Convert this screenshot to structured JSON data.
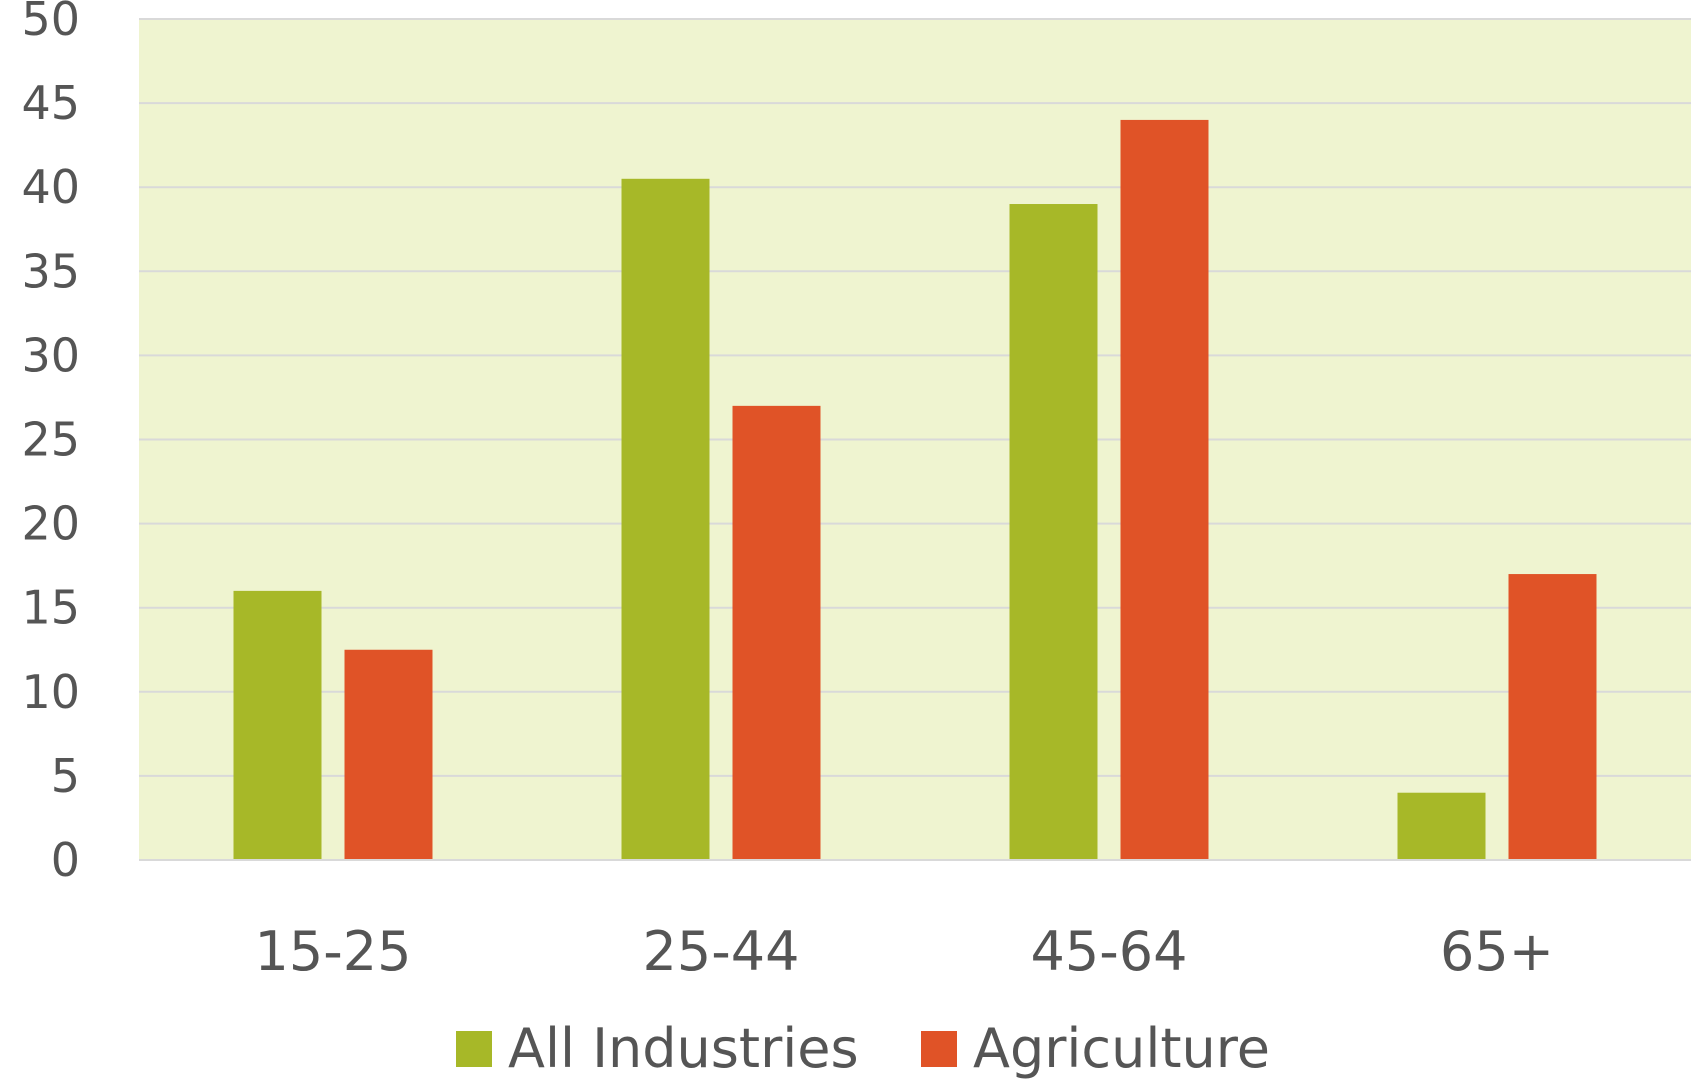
{
  "chart_data": {
    "type": "bar",
    "title": "",
    "xlabel": "",
    "ylabel": "",
    "categories": [
      "15-25",
      "25-44",
      "45-64",
      "65+"
    ],
    "series": [
      {
        "name": "All Industries",
        "values": [
          16,
          40.5,
          39,
          4
        ],
        "color": "#a7b828"
      },
      {
        "name": "Agriculture",
        "values": [
          12.5,
          27,
          44,
          17
        ],
        "color": "#e05327"
      }
    ],
    "ylim": [
      0,
      50
    ],
    "yticks": [
      "0",
      "5",
      "10",
      "15",
      "20",
      "25",
      "30",
      "35",
      "40",
      "45",
      "50"
    ],
    "grid": true,
    "legend_position": "bottom",
    "plot_background": "#eff4d0",
    "gridline_color": "#d9d9d9",
    "text_color": "#555555"
  }
}
